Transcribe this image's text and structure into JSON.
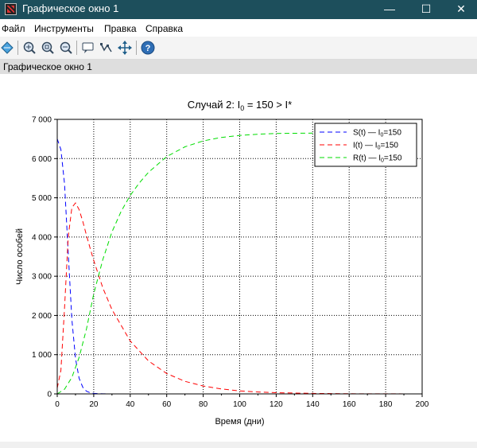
{
  "window": {
    "title": "Графическое окно 1",
    "minimize_glyph": "—",
    "maximize_glyph": "☐",
    "close_glyph": "✕"
  },
  "menu": [
    "Файл",
    "Инструменты",
    "Правка",
    "Справка"
  ],
  "toolbar": {
    "buttons": [
      "rotate-icon",
      "zoom-in-icon",
      "zoom-fit-icon",
      "zoom-out-icon",
      "datatip-icon",
      "edit-data-icon",
      "move-icon",
      "help-icon"
    ]
  },
  "figure_label": "Графическое окно 1",
  "chart_data": {
    "type": "line",
    "title": "Случай 2: I₀ = 150 > I*",
    "title_parts": {
      "prefix": "Случай 2: I",
      "sub": "0",
      "suffix": " = 150 > I*"
    },
    "xlabel": "Время (дни)",
    "ylabel": "Число особей",
    "xlim": [
      0,
      200
    ],
    "ylim": [
      0,
      7000
    ],
    "xticks": [
      0,
      20,
      40,
      60,
      80,
      100,
      120,
      140,
      160,
      180,
      200
    ],
    "xtick_labels": [
      "0",
      "20",
      "40",
      "60",
      "80",
      "100",
      "120",
      "140",
      "160",
      "180",
      "200"
    ],
    "yticks": [
      0,
      1000,
      2000,
      3000,
      4000,
      5000,
      6000,
      7000
    ],
    "ytick_labels": [
      "0",
      "1 000",
      "2 000",
      "3 000",
      "4 000",
      "5 000",
      "6 000",
      "7 000"
    ],
    "grid": true,
    "legend_position": "top-right",
    "series": [
      {
        "name": "S(t) — I₀=150",
        "label_parts": {
          "prefix": "S(t) — I",
          "sub": "0",
          "suffix": "=150"
        },
        "color": "#0000ff",
        "style": "dashed",
        "x": [
          0,
          2,
          4,
          6,
          8,
          10,
          12,
          14,
          16,
          18,
          20,
          25,
          30
        ],
        "y": [
          6500,
          6230,
          5350,
          3600,
          1900,
          900,
          400,
          170,
          70,
          30,
          12,
          2,
          0
        ]
      },
      {
        "name": "I(t) — I₀=150",
        "label_parts": {
          "prefix": "I(t) — I",
          "sub": "0",
          "suffix": "=150"
        },
        "color": "#ff0000",
        "style": "dashed",
        "x": [
          0,
          2,
          4,
          6,
          8,
          10,
          12,
          14,
          16,
          18,
          20,
          25,
          30,
          40,
          50,
          60,
          70,
          80,
          90,
          100,
          110,
          120,
          140,
          160,
          180,
          200
        ],
        "y": [
          150,
          600,
          2200,
          4000,
          4750,
          4870,
          4700,
          4400,
          4050,
          3720,
          3400,
          2700,
          2150,
          1350,
          840,
          520,
          320,
          200,
          125,
          78,
          48,
          30,
          12,
          5,
          2,
          1
        ]
      },
      {
        "name": "R(t) — I₀=150",
        "label_parts": {
          "prefix": "R(t) — I",
          "sub": "0",
          "suffix": "=150"
        },
        "color": "#00dd00",
        "style": "dashed",
        "x": [
          0,
          4,
          8,
          12,
          16,
          20,
          25,
          30,
          35,
          40,
          45,
          50,
          60,
          70,
          80,
          90,
          100,
          110,
          120,
          130,
          140
        ],
        "y": [
          0,
          120,
          420,
          930,
          1650,
          2550,
          3430,
          4130,
          4650,
          5060,
          5380,
          5650,
          6050,
          6300,
          6450,
          6540,
          6590,
          6620,
          6640,
          6645,
          6650
        ]
      }
    ]
  }
}
